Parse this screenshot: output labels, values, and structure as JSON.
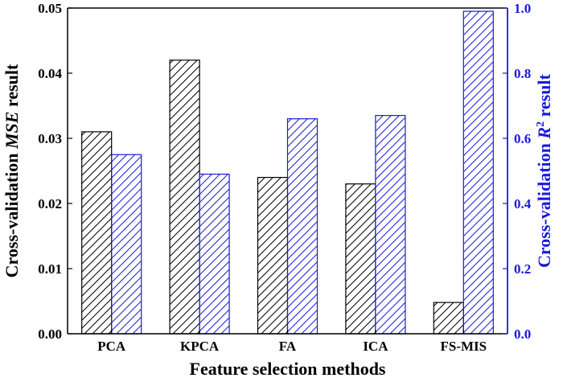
{
  "chart_data": {
    "type": "bar",
    "categories": [
      "PCA",
      "KPCA",
      "FA",
      "ICA",
      "FS-MIS"
    ],
    "series": [
      {
        "values": [
          0.031,
          0.042,
          0.024,
          0.023,
          0.0048
        ],
        "axis": "left",
        "pattern": "diagonal-hatch",
        "color": "#000000"
      },
      {
        "values": [
          0.55,
          0.49,
          0.66,
          0.67,
          0.99
        ],
        "axis": "right",
        "pattern": "diagonal-hatch",
        "color": "#1a1adb"
      }
    ],
    "xlabel": "Feature selection methods",
    "ylabel_left": {
      "prefix": "Cross-validation ",
      "italic": "MSE",
      "suffix": " result"
    },
    "ylabel_right": {
      "prefix": "Cross-validation ",
      "italic": "R",
      "sup": "2",
      "suffix": " result"
    },
    "ylim_left": [
      0,
      0.05
    ],
    "ylim_right": [
      0,
      1.0
    ],
    "yticks_left": [
      "0.00",
      "0.01",
      "0.02",
      "0.03",
      "0.04",
      "0.05"
    ],
    "yticks_right": [
      "0.0",
      "0.2",
      "0.4",
      "0.6",
      "0.8",
      "1.0"
    ],
    "grid": false,
    "legend": "none",
    "right_axis_color": "#1a1adb"
  }
}
